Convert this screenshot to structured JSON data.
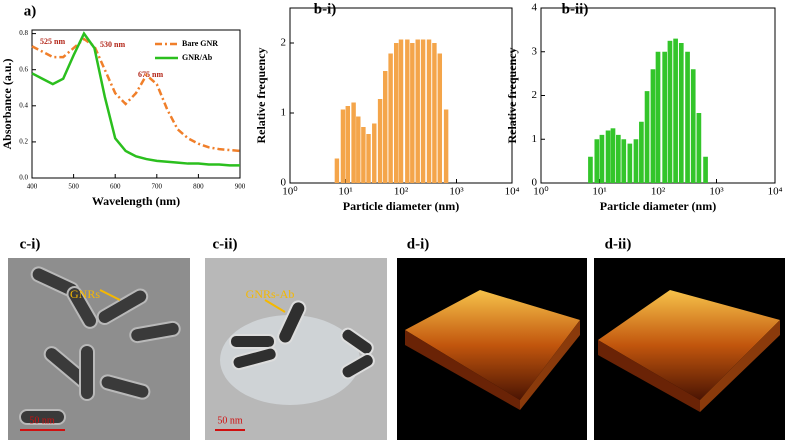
{
  "chart_data": [
    {
      "type": "line",
      "title": "a)",
      "x_label": "Wavelength (nm)",
      "y_label": "Absorbance (a.u.)",
      "x": [
        400,
        425,
        450,
        475,
        500,
        525,
        550,
        575,
        600,
        625,
        650,
        675,
        700,
        725,
        750,
        775,
        800,
        825,
        850,
        875,
        900
      ],
      "series": [
        {
          "name": "Bare GNR",
          "color": "#f07f2a",
          "dash": "dash-dot",
          "values": [
            0.73,
            0.7,
            0.67,
            0.67,
            0.72,
            0.77,
            0.73,
            0.6,
            0.47,
            0.41,
            0.47,
            0.57,
            0.52,
            0.38,
            0.27,
            0.22,
            0.19,
            0.17,
            0.16,
            0.155,
            0.15
          ]
        },
        {
          "name": "GNR/Ab",
          "color": "#2bbf1e",
          "dash": "solid",
          "values": [
            0.58,
            0.55,
            0.52,
            0.55,
            0.68,
            0.8,
            0.72,
            0.45,
            0.22,
            0.15,
            0.12,
            0.105,
            0.095,
            0.09,
            0.085,
            0.08,
            0.08,
            0.075,
            0.075,
            0.07,
            0.07
          ]
        }
      ],
      "annotations": [
        "525 nm",
        "530 nm",
        "675 nm"
      ],
      "xlim": [
        400,
        900
      ],
      "xticks": [
        400,
        500,
        600,
        700,
        800,
        900
      ],
      "ylim": [
        0,
        0.82
      ],
      "yticks": [
        {
          "value": 0,
          "label": "0.0"
        },
        0.2,
        0.4,
        0.6,
        0.8
      ],
      "legend": "upper right"
    },
    {
      "type": "bar",
      "title": "b-i)",
      "x_label": "Particle diameter (nm)",
      "y_label": "Relative frequency",
      "log_x": true,
      "color": "#f4a54a",
      "x": [
        7,
        9,
        11,
        14,
        17,
        21,
        26,
        33,
        42,
        52,
        65,
        82,
        100,
        130,
        160,
        200,
        250,
        320,
        400,
        500,
        650
      ],
      "values": [
        0.35,
        1.05,
        1.1,
        1.15,
        0.95,
        0.8,
        0.7,
        0.85,
        1.2,
        1.6,
        1.85,
        2.0,
        2.05,
        2.05,
        2.0,
        2.05,
        2.05,
        2.05,
        2.0,
        1.85,
        1.05
      ],
      "xlim": [
        1,
        10000
      ],
      "xticks": [
        {
          "value": 1,
          "label": "10⁰"
        },
        {
          "value": 10,
          "label": "10¹"
        },
        {
          "value": 100,
          "label": "10²"
        },
        {
          "value": 1000,
          "label": "10³"
        },
        {
          "value": 10000,
          "label": "10⁴"
        }
      ],
      "ylim": [
        0,
        2.5
      ],
      "yticks": [
        0,
        1,
        2
      ]
    },
    {
      "type": "bar",
      "title": "b-ii)",
      "x_label": "Particle diameter (nm)",
      "y_label": "Relative frequency",
      "log_x": true,
      "color": "#33c52a",
      "x": [
        7,
        9,
        11,
        14,
        17,
        21,
        26,
        33,
        42,
        52,
        65,
        82,
        100,
        130,
        160,
        200,
        250,
        320,
        400,
        500,
        650
      ],
      "values": [
        0.6,
        1.0,
        1.1,
        1.2,
        1.25,
        1.1,
        1.0,
        0.9,
        1.0,
        1.4,
        2.1,
        2.6,
        3.0,
        3.0,
        3.25,
        3.3,
        3.2,
        3.0,
        2.6,
        1.6,
        0.6
      ],
      "xlim": [
        1,
        10000
      ],
      "xticks": [
        {
          "value": 1,
          "label": "10⁰"
        },
        {
          "value": 10,
          "label": "10¹"
        },
        {
          "value": 100,
          "label": "10²"
        },
        {
          "value": 1000,
          "label": "10³"
        },
        {
          "value": 10000,
          "label": "10⁴"
        }
      ],
      "ylim": [
        0,
        4
      ],
      "yticks": [
        0,
        1,
        2,
        3,
        4
      ]
    }
  ],
  "panels": [
    {
      "label": "c-i)",
      "annotation": "GNRs",
      "scale_bar": "50 nm"
    },
    {
      "label": "c-ii)",
      "annotation": "GNRs-Ab",
      "scale_bar": "50 nm"
    },
    {
      "label": "d-i)"
    },
    {
      "label": "d-ii)"
    }
  ]
}
